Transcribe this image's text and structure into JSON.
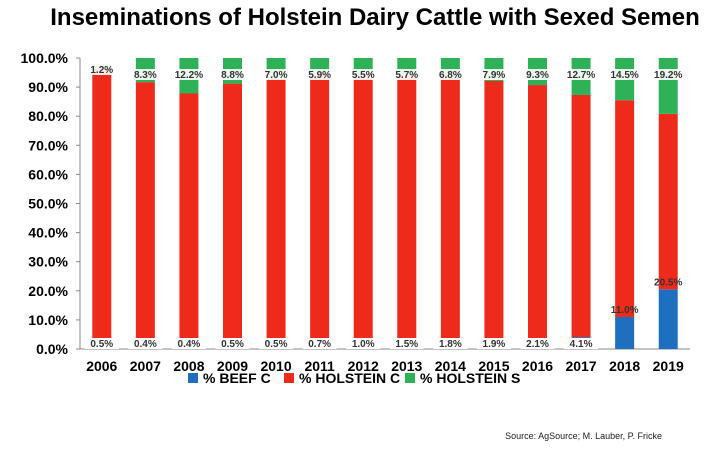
{
  "chart_data": {
    "type": "bar",
    "stacked": true,
    "title": "Inseminations of Holstein Dairy Cattle with Sexed Semen",
    "xlabel": "",
    "ylabel": "",
    "ylim": [
      0,
      100
    ],
    "y_ticks": [
      "0.0%",
      "10.0%",
      "20.0%",
      "30.0%",
      "40.0%",
      "50.0%",
      "60.0%",
      "70.0%",
      "80.0%",
      "90.0%",
      "100.0%"
    ],
    "categories": [
      "2006",
      "2007",
      "2008",
      "2009",
      "2010",
      "2011",
      "2012",
      "2013",
      "2014",
      "2015",
      "2016",
      "2017",
      "2018",
      "2019"
    ],
    "series": [
      {
        "name": "% BEEF C",
        "color": "#1f6fc0",
        "values": [
          0.5,
          0.4,
          0.4,
          0.5,
          0.5,
          0.7,
          1.0,
          1.5,
          1.8,
          1.9,
          2.1,
          4.1,
          11.0,
          20.5
        ],
        "labels": [
          "0.5%",
          "0.4%",
          "0.4%",
          "0.5%",
          "0.5%",
          "0.7%",
          "1.0%",
          "1.5%",
          "1.8%",
          "1.9%",
          "2.1%",
          "4.1%",
          "11.0%",
          "20.5%"
        ]
      },
      {
        "name": "% HOLSTEIN C",
        "color": "#ee2a1b",
        "values": [
          96.1,
          91.3,
          87.4,
          90.7,
          92.5,
          93.4,
          93.5,
          92.8,
          91.4,
          90.2,
          88.6,
          83.2,
          74.5,
          60.3
        ],
        "labels": []
      },
      {
        "name": "% HOLSTEIN S",
        "color": "#2fb257",
        "values": [
          1.2,
          8.3,
          12.2,
          8.8,
          7.0,
          5.9,
          5.5,
          5.7,
          6.8,
          7.9,
          9.3,
          12.7,
          14.5,
          19.2
        ],
        "labels": [
          "1.2%",
          "8.3%",
          "12.2%",
          "8.8%",
          "7.0%",
          "5.9%",
          "5.5%",
          "5.7%",
          "6.8%",
          "7.9%",
          "9.3%",
          "12.7%",
          "14.5%",
          "19.2%"
        ]
      }
    ],
    "grid": false,
    "legend_position": "bottom"
  },
  "source": "Source: AgSource; M. Lauber, P. Fricke"
}
